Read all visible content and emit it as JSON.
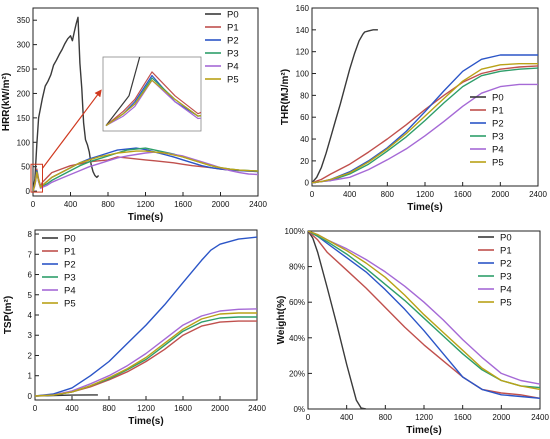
{
  "colors": {
    "P0": "#3a3a3a",
    "P1": "#c0504d",
    "P2": "#2b55c7",
    "P3": "#2e9e6a",
    "P4": "#a569d6",
    "P5": "#b9a217"
  },
  "chart_data": [
    {
      "id": "hrr",
      "type": "line",
      "xlabel": "Time(s)",
      "ylabel": "HRR(kW/m²)",
      "xlim": [
        0,
        2400
      ],
      "ylim": [
        -10,
        375
      ],
      "xticks": [
        0,
        400,
        800,
        1200,
        1600,
        2000,
        2400
      ],
      "yticks": [
        0,
        50,
        100,
        150,
        200,
        250,
        300,
        350
      ],
      "legend": "top-right",
      "inset": "zoom of the first 0-80 s, connected by an arrow to a boxed region near the origin",
      "series": [
        {
          "name": "P0",
          "x": [
            0,
            20,
            40,
            60,
            80,
            100,
            130,
            160,
            190,
            220,
            250,
            280,
            310,
            340,
            370,
            400,
            420,
            440,
            460,
            480,
            500,
            520,
            540,
            560,
            580,
            600,
            620,
            640,
            660,
            680,
            700
          ],
          "y": [
            0,
            25,
            95,
            150,
            170,
            190,
            215,
            225,
            238,
            258,
            268,
            280,
            290,
            302,
            312,
            318,
            308,
            326,
            342,
            356,
            262,
            210,
            140,
            105,
            95,
            80,
            55,
            40,
            32,
            28,
            32
          ]
        },
        {
          "name": "P1",
          "x": [
            0,
            15,
            25,
            40,
            60,
            80,
            100,
            150,
            200,
            300,
            400,
            500,
            600,
            700,
            800,
            900,
            1000,
            1100,
            1200,
            1300,
            1400,
            1500,
            1600,
            1700,
            1800,
            1900,
            2000,
            2100,
            2200,
            2300,
            2400
          ],
          "y": [
            0,
            12,
            22,
            45,
            25,
            10,
            18,
            28,
            38,
            45,
            52,
            56,
            60,
            62,
            64,
            70,
            68,
            66,
            64,
            62,
            60,
            58,
            55,
            52,
            50,
            48,
            45,
            43,
            42,
            41,
            41
          ]
        },
        {
          "name": "P2",
          "x": [
            0,
            15,
            25,
            40,
            60,
            80,
            100,
            150,
            200,
            300,
            400,
            500,
            600,
            700,
            800,
            900,
            1000,
            1100,
            1200,
            1300,
            1400,
            1500,
            1600,
            1700,
            1800,
            1900,
            2000,
            2100,
            2200,
            2300,
            2400
          ],
          "y": [
            0,
            10,
            20,
            42,
            20,
            8,
            12,
            20,
            28,
            38,
            48,
            58,
            66,
            72,
            78,
            84,
            86,
            88,
            85,
            80,
            75,
            70,
            64,
            58,
            52,
            48,
            45,
            43,
            42,
            41,
            40
          ]
        },
        {
          "name": "P3",
          "x": [
            0,
            15,
            25,
            40,
            60,
            80,
            100,
            150,
            200,
            300,
            400,
            500,
            600,
            700,
            800,
            900,
            1000,
            1100,
            1200,
            1300,
            1400,
            1500,
            1600,
            1700,
            1800,
            1900,
            2000,
            2100,
            2200,
            2300,
            2400
          ],
          "y": [
            0,
            10,
            18,
            40,
            22,
            8,
            10,
            15,
            22,
            32,
            42,
            52,
            60,
            66,
            72,
            78,
            84,
            86,
            88,
            84,
            80,
            76,
            70,
            64,
            58,
            52,
            48,
            45,
            43,
            42,
            41
          ]
        },
        {
          "name": "P4",
          "x": [
            0,
            15,
            25,
            40,
            60,
            80,
            100,
            150,
            200,
            300,
            400,
            500,
            600,
            700,
            800,
            900,
            1000,
            1100,
            1200,
            1300,
            1400,
            1500,
            1600,
            1700,
            1800,
            1900,
            2000,
            2100,
            2200,
            2300,
            2400
          ],
          "y": [
            0,
            8,
            16,
            38,
            20,
            6,
            8,
            12,
            18,
            26,
            34,
            42,
            50,
            56,
            62,
            68,
            72,
            75,
            78,
            80,
            78,
            75,
            72,
            66,
            60,
            54,
            48,
            42,
            38,
            35,
            34
          ]
        },
        {
          "name": "P5",
          "x": [
            0,
            15,
            25,
            40,
            60,
            80,
            100,
            150,
            200,
            300,
            400,
            500,
            600,
            700,
            800,
            900,
            1000,
            1100,
            1200,
            1300,
            1400,
            1500,
            1600,
            1700,
            1800,
            1900,
            2000,
            2100,
            2200,
            2300,
            2400
          ],
          "y": [
            0,
            10,
            18,
            38,
            22,
            8,
            12,
            20,
            28,
            38,
            48,
            58,
            64,
            70,
            74,
            78,
            80,
            82,
            82,
            80,
            78,
            74,
            70,
            64,
            58,
            52,
            48,
            45,
            43,
            42,
            41
          ]
        }
      ]
    },
    {
      "id": "thr",
      "type": "line",
      "xlabel": "Time(s)",
      "ylabel": "THR(MJ/m²)",
      "xlim": [
        0,
        2400
      ],
      "ylim": [
        -3,
        160
      ],
      "xticks": [
        0,
        400,
        800,
        1200,
        1600,
        2000,
        2400
      ],
      "yticks": [
        0,
        20,
        40,
        60,
        80,
        100,
        120,
        140,
        160
      ],
      "legend": "bottom-right",
      "series": [
        {
          "name": "P0",
          "x": [
            0,
            50,
            100,
            150,
            200,
            250,
            300,
            350,
            400,
            450,
            500,
            540,
            560,
            600,
            650,
            700
          ],
          "y": [
            0,
            5,
            14,
            27,
            42,
            57,
            72,
            88,
            104,
            118,
            130,
            136,
            138,
            139,
            140,
            140
          ]
        },
        {
          "name": "P1",
          "x": [
            0,
            100,
            200,
            400,
            600,
            800,
            1000,
            1200,
            1400,
            1600,
            1800,
            2000,
            2200,
            2400
          ],
          "y": [
            0,
            3,
            8,
            17,
            28,
            40,
            53,
            67,
            80,
            92,
            100,
            104,
            106,
            107
          ]
        },
        {
          "name": "P2",
          "x": [
            0,
            100,
            200,
            400,
            600,
            800,
            1000,
            1200,
            1400,
            1600,
            1800,
            2000,
            2200,
            2400
          ],
          "y": [
            0,
            1,
            3,
            10,
            20,
            32,
            47,
            65,
            84,
            102,
            113,
            117,
            117,
            117
          ]
        },
        {
          "name": "P3",
          "x": [
            0,
            100,
            200,
            400,
            600,
            800,
            1000,
            1200,
            1400,
            1600,
            1800,
            2000,
            2200,
            2400
          ],
          "y": [
            0,
            1,
            2,
            8,
            17,
            29,
            42,
            57,
            73,
            88,
            98,
            102,
            104,
            105
          ]
        },
        {
          "name": "P4",
          "x": [
            0,
            100,
            200,
            400,
            600,
            800,
            1000,
            1200,
            1400,
            1600,
            1800,
            2000,
            2200,
            2400
          ],
          "y": [
            0,
            1,
            2,
            5,
            12,
            21,
            31,
            43,
            56,
            70,
            82,
            88,
            90,
            90
          ]
        },
        {
          "name": "P5",
          "x": [
            0,
            100,
            200,
            400,
            600,
            800,
            1000,
            1200,
            1400,
            1600,
            1800,
            2000,
            2200,
            2400
          ],
          "y": [
            0,
            1,
            3,
            9,
            19,
            31,
            45,
            61,
            77,
            93,
            104,
            108,
            109,
            109
          ]
        }
      ]
    },
    {
      "id": "tsp",
      "type": "line",
      "xlabel": "Time(s)",
      "ylabel": "TSP(m²)",
      "xlim": [
        0,
        2400
      ],
      "ylim": [
        -0.2,
        8.2
      ],
      "xticks": [
        0,
        400,
        800,
        1200,
        1600,
        2000,
        2400
      ],
      "yticks": [
        0,
        1,
        2,
        3,
        4,
        5,
        6,
        7,
        8
      ],
      "legend": "top-left",
      "series": [
        {
          "name": "P0",
          "x": [
            0,
            200,
            400,
            600,
            680
          ],
          "y": [
            0,
            0.02,
            0.04,
            0.05,
            0.05
          ]
        },
        {
          "name": "P1",
          "x": [
            0,
            200,
            400,
            600,
            800,
            1000,
            1200,
            1400,
            1600,
            1800,
            2000,
            2200,
            2400
          ],
          "y": [
            0,
            0.05,
            0.2,
            0.45,
            0.8,
            1.2,
            1.7,
            2.3,
            3.0,
            3.45,
            3.65,
            3.7,
            3.7
          ]
        },
        {
          "name": "P2",
          "x": [
            0,
            200,
            400,
            600,
            800,
            1000,
            1200,
            1400,
            1600,
            1800,
            1900,
            2000,
            2200,
            2400
          ],
          "y": [
            0,
            0.1,
            0.4,
            1.0,
            1.7,
            2.6,
            3.5,
            4.5,
            5.6,
            6.7,
            7.2,
            7.5,
            7.75,
            7.85
          ]
        },
        {
          "name": "P3",
          "x": [
            0,
            200,
            400,
            600,
            800,
            1000,
            1200,
            1400,
            1600,
            1800,
            2000,
            2200,
            2400
          ],
          "y": [
            0,
            0.04,
            0.2,
            0.5,
            0.85,
            1.3,
            1.8,
            2.5,
            3.2,
            3.65,
            3.85,
            3.9,
            3.9
          ]
        },
        {
          "name": "P4",
          "x": [
            0,
            200,
            400,
            600,
            800,
            1000,
            1200,
            1400,
            1600,
            1800,
            2000,
            2200,
            2400
          ],
          "y": [
            0,
            0.05,
            0.25,
            0.6,
            1.0,
            1.5,
            2.1,
            2.8,
            3.5,
            3.95,
            4.2,
            4.28,
            4.3
          ]
        },
        {
          "name": "P5",
          "x": [
            0,
            200,
            400,
            600,
            800,
            1000,
            1200,
            1400,
            1600,
            1800,
            2000,
            2200,
            2400
          ],
          "y": [
            0,
            0.04,
            0.2,
            0.5,
            0.9,
            1.35,
            1.9,
            2.6,
            3.3,
            3.8,
            4.05,
            4.1,
            4.1
          ]
        }
      ]
    },
    {
      "id": "weight",
      "type": "line",
      "xlabel": "Time(s)",
      "ylabel": "Weight(%)",
      "xlim": [
        0,
        2400
      ],
      "ylim": [
        0,
        100
      ],
      "xticks": [
        0,
        400,
        800,
        1200,
        1600,
        2000,
        2400
      ],
      "yticks": [
        0,
        20,
        40,
        60,
        80,
        100
      ],
      "yticklabels": [
        "0%",
        "20%",
        "40%",
        "60%",
        "80%",
        "100%"
      ],
      "legend": "top-right",
      "series": [
        {
          "name": "P0",
          "x": [
            0,
            50,
            100,
            200,
            300,
            400,
            450,
            500,
            550,
            600
          ],
          "y": [
            100,
            96,
            88,
            68,
            47,
            25,
            15,
            5,
            0.5,
            0
          ]
        },
        {
          "name": "P1",
          "x": [
            0,
            100,
            200,
            400,
            600,
            800,
            1000,
            1200,
            1400,
            1600,
            1800,
            2000,
            2200,
            2400
          ],
          "y": [
            100,
            95,
            88,
            78,
            68,
            57,
            46,
            36,
            27,
            18,
            11,
            9,
            8,
            6
          ]
        },
        {
          "name": "P2",
          "x": [
            0,
            100,
            200,
            400,
            600,
            800,
            1000,
            1200,
            1400,
            1600,
            1800,
            2000,
            2200,
            2400
          ],
          "y": [
            100,
            97,
            93,
            85,
            77,
            67,
            56,
            44,
            31,
            18,
            11,
            8,
            7,
            6
          ]
        },
        {
          "name": "P3",
          "x": [
            0,
            100,
            200,
            400,
            600,
            800,
            1000,
            1200,
            1400,
            1600,
            1800,
            2000,
            2200,
            2400
          ],
          "y": [
            100,
            97,
            94,
            87,
            79,
            70,
            61,
            51,
            41,
            31,
            22,
            16,
            13,
            12
          ]
        },
        {
          "name": "P4",
          "x": [
            0,
            100,
            200,
            400,
            600,
            800,
            1000,
            1200,
            1400,
            1600,
            1800,
            2000,
            2200,
            2400
          ],
          "y": [
            100,
            98,
            95,
            90,
            84,
            77,
            69,
            60,
            50,
            39,
            29,
            20,
            16,
            14
          ]
        },
        {
          "name": "P5",
          "x": [
            0,
            100,
            200,
            400,
            600,
            800,
            1000,
            1200,
            1400,
            1600,
            1800,
            2000,
            2200,
            2400
          ],
          "y": [
            100,
            98,
            95,
            89,
            82,
            74,
            64,
            53,
            43,
            33,
            23,
            16,
            13,
            11
          ]
        }
      ]
    }
  ]
}
